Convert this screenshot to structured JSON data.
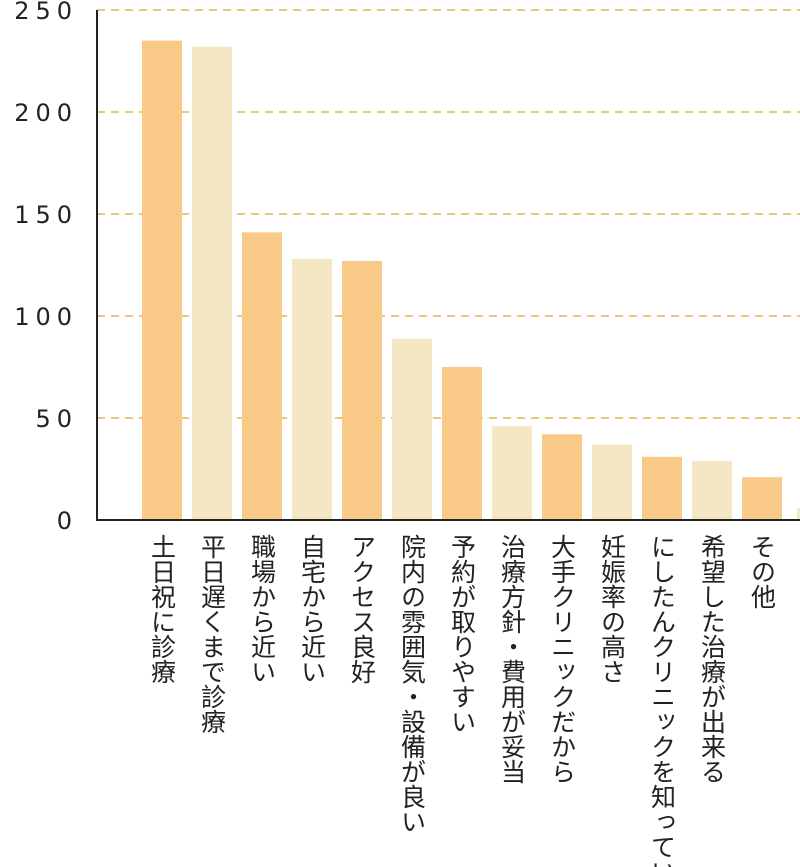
{
  "colors": {
    "bar_primary": "#f9c987",
    "bar_secondary": "#f5e6c4",
    "grid": "#e8c97a",
    "axis": "#222222"
  },
  "chart_data": {
    "type": "bar",
    "title": "",
    "xlabel": "",
    "ylabel": "",
    "ylim": [
      0,
      250
    ],
    "yticks": [
      0,
      50,
      100,
      150,
      200,
      250
    ],
    "grid": true,
    "grid_style": "dashed",
    "categories": [
      "土日祝に診療",
      "平日遅くまで診療",
      "職場から近い",
      "自宅から近い",
      "アクセス良好",
      "院内の雰囲気・設備が良い",
      "予約が取りやすい",
      "治療方針・費用が妥当",
      "大手クリニックだから",
      "妊娠率の高さ",
      "にしたんクリニックを知っていた",
      "希望した治療が出来る",
      "その他"
    ],
    "values": [
      235,
      232,
      141,
      128,
      127,
      89,
      75,
      46,
      42,
      37,
      31,
      29,
      21
    ]
  }
}
